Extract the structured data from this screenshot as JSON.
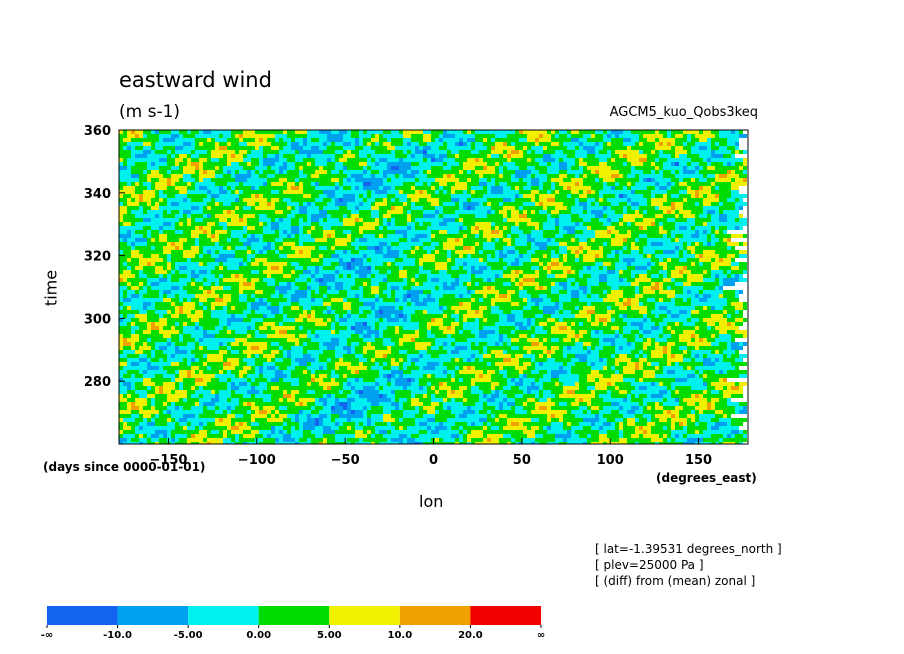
{
  "title": "eastward wind",
  "units": "(m s-1)",
  "model": "AGCM5_kuo_Qobs3keq",
  "annotations": [
    "[ lat=-1.39531 degrees_north ]",
    "[ plev=25000 Pa ]",
    "[ (diff) from (mean) zonal ]"
  ],
  "chart_data": {
    "type": "heatmap",
    "title": "eastward wind",
    "subtitle": "(m s-1)",
    "xlabel": "lon",
    "xunits": "(degrees_east)",
    "ylabel": "time",
    "yunits": "(days since 0000-01-01)",
    "xlim": [
      -178,
      178
    ],
    "ylim": [
      260,
      360
    ],
    "x_ticks": [
      -150,
      -100,
      -50,
      0,
      50,
      100,
      150
    ],
    "y_ticks": [
      280,
      300,
      320,
      340,
      360
    ],
    "x_tick_labels": [
      "−150",
      "−100",
      "−50",
      "0",
      "50",
      "100",
      "150"
    ],
    "y_tick_labels": [
      "280",
      "300",
      "320",
      "340",
      "360"
    ],
    "levels": [
      -10,
      -5,
      0,
      5,
      10,
      20
    ],
    "level_labels": [
      "-∞",
      "-10.0",
      "-5.00",
      "0.00",
      "5.00",
      "10.0",
      "20.0",
      "∞"
    ],
    "colors": [
      "#1464f0",
      "#00a0f0",
      "#00f0f0",
      "#00dc00",
      "#f0f000",
      "#f0a000",
      "#f00000"
    ]
  }
}
